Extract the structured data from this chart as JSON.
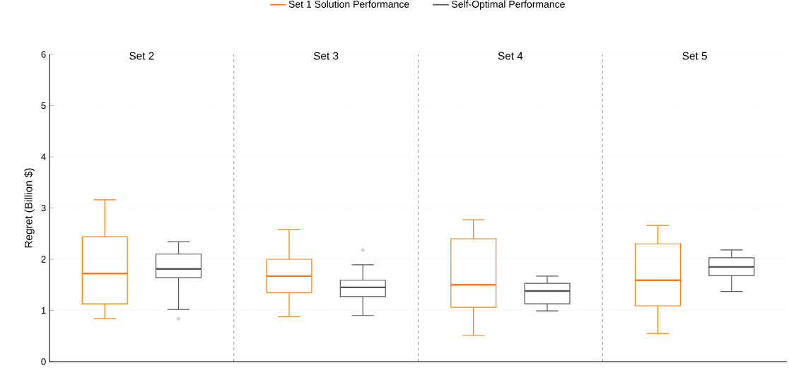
{
  "chart_data": {
    "type": "box",
    "ylabel": "Regret (Billion $)",
    "categories": [
      "Set 2",
      "Set 3",
      "Set 4",
      "Set 5"
    ],
    "ylim": [
      0,
      6
    ],
    "yticks": [
      0,
      1,
      2,
      3,
      4,
      5,
      6
    ],
    "grid": "y",
    "legend": "top",
    "series": [
      {
        "name": "Set 1 Solution Performance",
        "color": "#ff7f0e",
        "boxes": [
          {
            "low": 0.84,
            "q1": 1.13,
            "median": 1.72,
            "q3": 2.44,
            "high": 3.16
          },
          {
            "low": 0.88,
            "q1": 1.35,
            "median": 1.67,
            "q3": 2.0,
            "high": 2.58
          },
          {
            "low": 0.51,
            "q1": 1.06,
            "median": 1.5,
            "q3": 2.4,
            "high": 2.77
          },
          {
            "low": 0.55,
            "q1": 1.09,
            "median": 1.59,
            "q3": 2.3,
            "high": 2.66
          }
        ]
      },
      {
        "name": "Self-Optimal Performance",
        "color": "#555555",
        "boxes": [
          {
            "low": 1.02,
            "q1": 1.64,
            "median": 1.81,
            "q3": 2.1,
            "high": 2.34,
            "outliers": [
              0.84
            ]
          },
          {
            "low": 0.9,
            "q1": 1.27,
            "median": 1.45,
            "q3": 1.59,
            "high": 1.89,
            "outliers": [
              2.18
            ]
          },
          {
            "low": 0.99,
            "q1": 1.13,
            "median": 1.38,
            "q3": 1.53,
            "high": 1.67
          },
          {
            "low": 1.37,
            "q1": 1.68,
            "median": 1.85,
            "q3": 2.03,
            "high": 2.18
          }
        ]
      }
    ]
  }
}
